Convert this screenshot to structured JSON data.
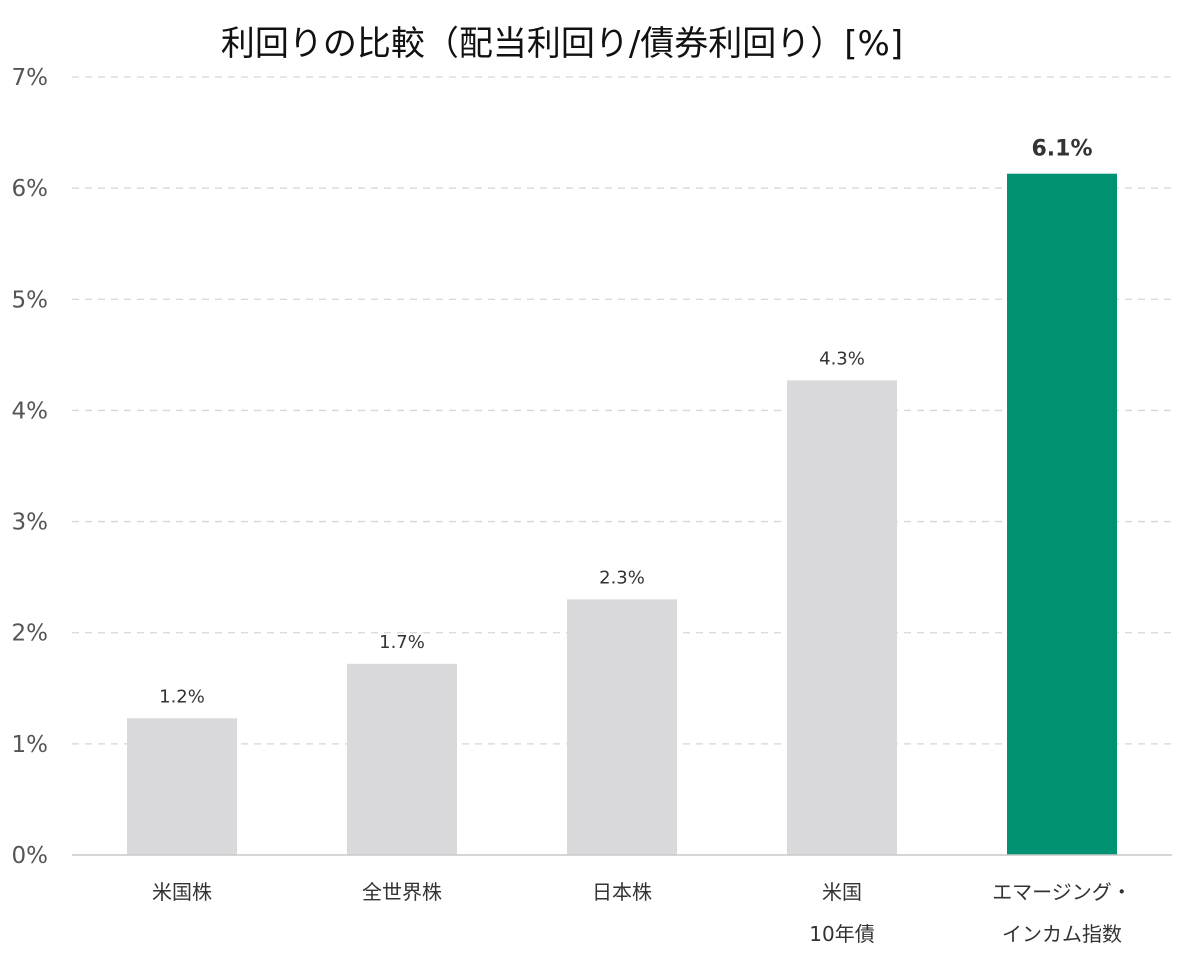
{
  "chart_data": {
    "type": "bar",
    "title": "利回りの比較（配当利回り/債券利回り）[%]",
    "xlabel": "",
    "ylabel": "",
    "ylim": [
      0,
      7
    ],
    "y_ticks": [
      "0%",
      "1%",
      "2%",
      "3%",
      "4%",
      "5%",
      "6%",
      "7%"
    ],
    "grid": true,
    "legend": "none",
    "categories": [
      [
        "米国株"
      ],
      [
        "全世界株"
      ],
      [
        "日本株"
      ],
      [
        "米国",
        "10年債"
      ],
      [
        "エマージング・",
        "インカム指数"
      ]
    ],
    "values": [
      1.23,
      1.72,
      2.3,
      4.27,
      6.13
    ],
    "data_labels": [
      "1.2%",
      "1.7%",
      "2.3%",
      "4.3%",
      "6.1%"
    ],
    "highlight_index": 4,
    "colors": {
      "default_bar": "#d9d8da",
      "highlight_bar": "#019272",
      "text": "#333333",
      "grid": "#d6d6d6"
    }
  }
}
